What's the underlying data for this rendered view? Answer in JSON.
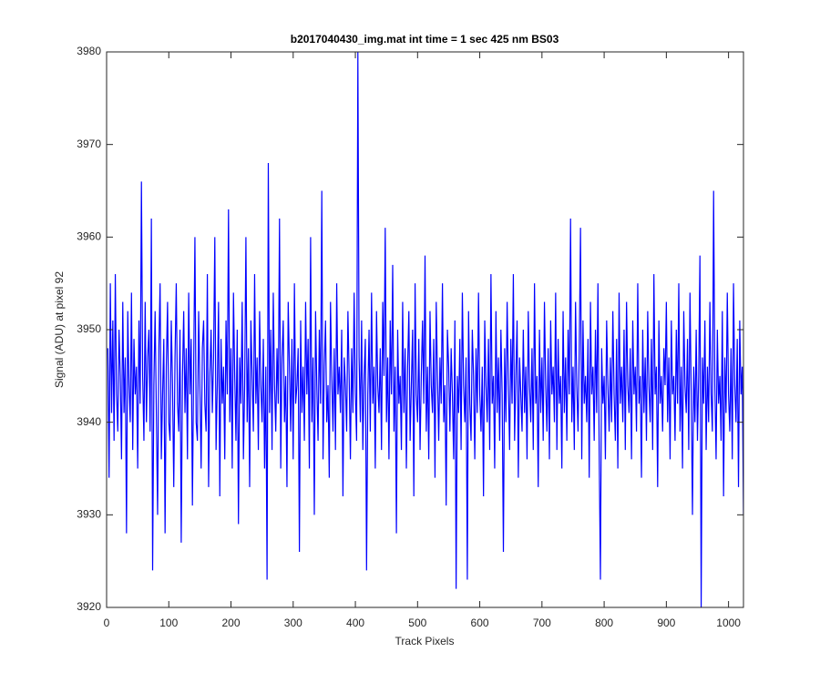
{
  "chart_data": {
    "type": "line",
    "title": "b2017040430_img.mat int time = 1 sec  425 nm BS03",
    "xlabel": "Track Pixels",
    "ylabel": "Signal (ADU) at pixel 92",
    "xlim": [
      0,
      1024
    ],
    "xticks": [
      0,
      100,
      200,
      300,
      400,
      500,
      600,
      700,
      800,
      900,
      1000
    ],
    "ylim": [
      3920,
      3980
    ],
    "yticks": [
      3920,
      3930,
      3940,
      3950,
      3960,
      3970,
      3980
    ],
    "grid": false,
    "series": [
      {
        "color": "#0000ff",
        "x": [
          2,
          4,
          6,
          8,
          10,
          12,
          14,
          16,
          18,
          20,
          22,
          24,
          26,
          28,
          30,
          32,
          34,
          36,
          38,
          40,
          42,
          44,
          46,
          48,
          50,
          52,
          54,
          56,
          58,
          60,
          62,
          64,
          66,
          68,
          70,
          72,
          74,
          76,
          78,
          80,
          82,
          84,
          86,
          88,
          90,
          92,
          94,
          96,
          98,
          100,
          102,
          104,
          106,
          108,
          110,
          112,
          114,
          116,
          118,
          120,
          122,
          124,
          126,
          128,
          130,
          132,
          134,
          136,
          138,
          140,
          142,
          144,
          146,
          148,
          150,
          152,
          154,
          156,
          158,
          160,
          162,
          164,
          166,
          168,
          170,
          172,
          174,
          176,
          178,
          180,
          182,
          184,
          186,
          188,
          190,
          192,
          194,
          196,
          198,
          200,
          202,
          204,
          206,
          208,
          210,
          212,
          214,
          216,
          218,
          220,
          222,
          224,
          226,
          228,
          230,
          232,
          234,
          236,
          238,
          240,
          242,
          244,
          246,
          248,
          250,
          252,
          254,
          256,
          258,
          260,
          262,
          264,
          266,
          268,
          270,
          272,
          274,
          276,
          278,
          280,
          282,
          284,
          286,
          288,
          290,
          292,
          294,
          296,
          298,
          300,
          302,
          304,
          306,
          308,
          310,
          312,
          314,
          316,
          318,
          320,
          322,
          324,
          326,
          328,
          330,
          332,
          334,
          336,
          338,
          340,
          342,
          344,
          346,
          348,
          350,
          352,
          354,
          356,
          358,
          360,
          362,
          364,
          366,
          368,
          370,
          372,
          374,
          376,
          378,
          380,
          382,
          384,
          386,
          388,
          390,
          392,
          394,
          396,
          398,
          400,
          402,
          404,
          406,
          408,
          410,
          412,
          414,
          416,
          418,
          420,
          422,
          424,
          426,
          428,
          430,
          432,
          434,
          436,
          438,
          440,
          442,
          444,
          446,
          448,
          450,
          452,
          454,
          456,
          458,
          460,
          462,
          464,
          466,
          468,
          470,
          472,
          474,
          476,
          478,
          480,
          482,
          484,
          486,
          488,
          490,
          492,
          494,
          496,
          498,
          500,
          502,
          504,
          506,
          508,
          510,
          512,
          514,
          516,
          518,
          520,
          522,
          524,
          526,
          528,
          530,
          532,
          534,
          536,
          538,
          540,
          542,
          544,
          546,
          548,
          550,
          552,
          554,
          556,
          558,
          560,
          562,
          564,
          566,
          568,
          570,
          572,
          574,
          576,
          578,
          580,
          582,
          584,
          586,
          588,
          590,
          592,
          594,
          596,
          598,
          600,
          602,
          604,
          606,
          608,
          610,
          612,
          614,
          616,
          618,
          620,
          622,
          624,
          626,
          628,
          630,
          632,
          634,
          636,
          638,
          640,
          642,
          644,
          646,
          648,
          650,
          652,
          654,
          656,
          658,
          660,
          662,
          664,
          666,
          668,
          670,
          672,
          674,
          676,
          678,
          680,
          682,
          684,
          686,
          688,
          690,
          692,
          694,
          696,
          698,
          700,
          702,
          704,
          706,
          708,
          710,
          712,
          714,
          716,
          718,
          720,
          722,
          724,
          726,
          728,
          730,
          732,
          734,
          736,
          738,
          740,
          742,
          744,
          746,
          748,
          750,
          752,
          754,
          756,
          758,
          760,
          762,
          764,
          766,
          768,
          770,
          772,
          774,
          776,
          778,
          780,
          782,
          784,
          786,
          788,
          790,
          792,
          794,
          796,
          798,
          800,
          802,
          804,
          806,
          808,
          810,
          812,
          814,
          816,
          818,
          820,
          822,
          824,
          826,
          828,
          830,
          832,
          834,
          836,
          838,
          840,
          842,
          844,
          846,
          848,
          850,
          852,
          854,
          856,
          858,
          860,
          862,
          864,
          866,
          868,
          870,
          872,
          874,
          876,
          878,
          880,
          882,
          884,
          886,
          888,
          890,
          892,
          894,
          896,
          898,
          900,
          902,
          904,
          906,
          908,
          910,
          912,
          914,
          916,
          918,
          920,
          922,
          924,
          926,
          928,
          930,
          932,
          934,
          936,
          938,
          940,
          942,
          944,
          946,
          948,
          950,
          952,
          954,
          956,
          958,
          960,
          962,
          964,
          966,
          968,
          970,
          972,
          974,
          976,
          978,
          980,
          982,
          984,
          986,
          988,
          990,
          992,
          994,
          996,
          998,
          1000,
          1002,
          1004,
          1006,
          1008,
          1010,
          1012,
          1014,
          1016,
          1018,
          1020,
          1022,
          1024
        ],
        "values": [
          3948,
          3934,
          3955,
          3941,
          3951,
          3938,
          3956,
          3943,
          3939,
          3950,
          3945,
          3936,
          3953,
          3941,
          3947,
          3928,
          3952,
          3944,
          3940,
          3954,
          3937,
          3949,
          3943,
          3946,
          3935,
          3951,
          3942,
          3966,
          3945,
          3938,
          3953,
          3940,
          3947,
          3950,
          3939,
          3962,
          3924,
          3944,
          3952,
          3941,
          3930,
          3948,
          3955,
          3936,
          3943,
          3949,
          3928,
          3946,
          3953,
          3940,
          3938,
          3951,
          3944,
          3933,
          3947,
          3955,
          3942,
          3939,
          3950,
          3927,
          3945,
          3952,
          3941,
          3948,
          3936,
          3954,
          3943,
          3949,
          3931,
          3946,
          3960,
          3940,
          3938,
          3952,
          3944,
          3935,
          3948,
          3951,
          3942,
          3939,
          3956,
          3933,
          3945,
          3950,
          3941,
          3947,
          3960,
          3937,
          3944,
          3953,
          3932,
          3949,
          3942,
          3946,
          3936,
          3951,
          3943,
          3963,
          3940,
          3948,
          3935,
          3954,
          3945,
          3938,
          3950,
          3929,
          3947,
          3942,
          3953,
          3936,
          3944,
          3960,
          3940,
          3948,
          3933,
          3951,
          3945,
          3939,
          3956,
          3942,
          3947,
          3937,
          3952,
          3944,
          3940,
          3949,
          3935,
          3946,
          3923,
          3968,
          3941,
          3950,
          3937,
          3954,
          3944,
          3939,
          3948,
          3942,
          3962,
          3935,
          3947,
          3951,
          3940,
          3945,
          3933,
          3953,
          3946,
          3939,
          3949,
          3936,
          3955,
          3942,
          3944,
          3948,
          3926,
          3951,
          3941,
          3946,
          3938,
          3953,
          3943,
          3949,
          3935,
          3960,
          3940,
          3947,
          3930,
          3952,
          3944,
          3938,
          3950,
          3942,
          3965,
          3936,
          3946,
          3951,
          3940,
          3944,
          3934,
          3953,
          3945,
          3939,
          3948,
          3937,
          3955,
          3943,
          3946,
          3941,
          3950,
          3932,
          3947,
          3944,
          3939,
          3952,
          3945,
          3936,
          3948,
          3941,
          3954,
          3943,
          3938,
          3980,
          3947,
          3940,
          3951,
          3937,
          3945,
          3949,
          3924,
          3943,
          3950,
          3939,
          3954,
          3942,
          3946,
          3935,
          3952,
          3944,
          3941,
          3948,
          3937,
          3953,
          3945,
          3961,
          3940,
          3947,
          3936,
          3951,
          3943,
          3957,
          3939,
          3946,
          3928,
          3950,
          3942,
          3945,
          3937,
          3953,
          3941,
          3948,
          3935,
          3946,
          3952,
          3938,
          3944,
          3950,
          3932,
          3955,
          3943,
          3940,
          3949,
          3937,
          3945,
          3951,
          3942,
          3958,
          3939,
          3946,
          3936,
          3952,
          3944,
          3941,
          3949,
          3934,
          3953,
          3945,
          3938,
          3947,
          3942,
          3955,
          3940,
          3944,
          3931,
          3950,
          3946,
          3939,
          3948,
          3943,
          3936,
          3951,
          3922,
          3945,
          3941,
          3949,
          3937,
          3954,
          3944,
          3940,
          3947,
          3923,
          3952,
          3942,
          3938,
          3950,
          3945,
          3936,
          3948,
          3941,
          3954,
          3943,
          3939,
          3946,
          3932,
          3951,
          3944,
          3940,
          3949,
          3937,
          3956,
          3942,
          3945,
          3935,
          3952,
          3941,
          3947,
          3938,
          3950,
          3943,
          3926,
          3948,
          3940,
          3953,
          3944,
          3937,
          3949,
          3942,
          3956,
          3938,
          3945,
          3951,
          3934,
          3947,
          3943,
          3939,
          3950,
          3941,
          3946,
          3936,
          3952,
          3944,
          3940,
          3948,
          3937,
          3955,
          3942,
          3945,
          3933,
          3950,
          3941,
          3947,
          3938,
          3953,
          3944,
          3939,
          3948,
          3936,
          3951,
          3943,
          3946,
          3940,
          3954,
          3937,
          3949,
          3942,
          3945,
          3935,
          3952,
          3941,
          3947,
          3938,
          3950,
          3943,
          3962,
          3940,
          3946,
          3937,
          3953,
          3944,
          3939,
          3948,
          3961,
          3936,
          3951,
          3942,
          3945,
          3940,
          3949,
          3934,
          3953,
          3943,
          3946,
          3938,
          3950,
          3941,
          3955,
          3937,
          3923,
          3948,
          3942,
          3945,
          3936,
          3951,
          3944,
          3939,
          3947,
          3940,
          3952,
          3943,
          3938,
          3949,
          3935,
          3954,
          3942,
          3946,
          3940,
          3950,
          3937,
          3953,
          3944,
          3941,
          3948,
          3936,
          3951,
          3943,
          3946,
          3939,
          3955,
          3942,
          3945,
          3934,
          3950,
          3941,
          3947,
          3938,
          3952,
          3944,
          3940,
          3949,
          3937,
          3956,
          3943,
          3946,
          3933,
          3951,
          3942,
          3945,
          3939,
          3948,
          3944,
          3953,
          3940,
          3947,
          3936,
          3951,
          3943,
          3945,
          3938,
          3950,
          3942,
          3955,
          3939,
          3946,
          3935,
          3952,
          3944,
          3941,
          3949,
          3937,
          3954,
          3943,
          3930,
          3946,
          3940,
          3950,
          3938,
          3945,
          3958,
          3920,
          3947,
          3942,
          3951,
          3937,
          3946,
          3940,
          3953,
          3943,
          3939,
          3965,
          3944,
          3936,
          3950,
          3942,
          3945,
          3938,
          3952,
          3932,
          3947,
          3941,
          3954,
          3943,
          3939,
          3948,
          3936,
          3955,
          3944,
          3940,
          3949,
          3933,
          3951,
          3943,
          3946,
          3930
        ]
      }
    ]
  }
}
